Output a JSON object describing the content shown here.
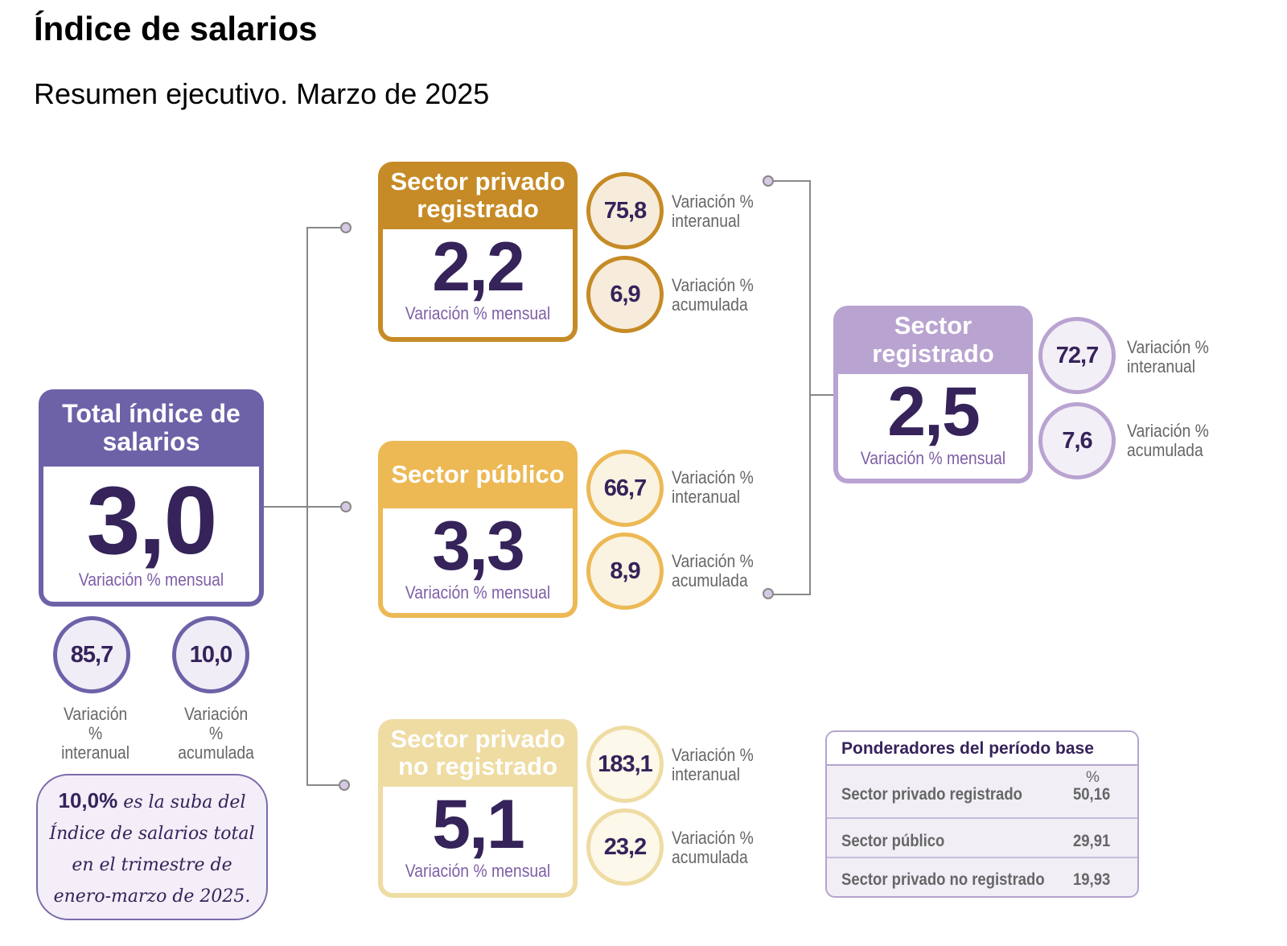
{
  "title": "Índice de salarios",
  "subtitle": "Resumen ejecutivo. Marzo de 2025",
  "colors": {
    "total": "#6d62a8",
    "privado_registrado": "#c68b26",
    "publico": "#ecb955",
    "no_registrado": "#efdca3",
    "registrado": "#b9a3d0",
    "dark": "#35235a"
  },
  "cards": [
    {
      "id": "total",
      "title": "Total índice de salarios",
      "value": "3,0",
      "label": "Variación % mensual",
      "interanual": "85,7",
      "acumulada": "10,0",
      "label_interanual": "Variación % interanual",
      "label_acumulada": "Variación % acumulada"
    },
    {
      "id": "privado-registrado",
      "title": "Sector privado registrado",
      "value": "2,2",
      "label": "Variación % mensual",
      "interanual": "75,8",
      "acumulada": "6,9",
      "label_interanual": "Variación % interanual",
      "label_acumulada": "Variación % acumulada"
    },
    {
      "id": "publico",
      "title": "Sector público",
      "value": "3,3",
      "label": "Variación % mensual",
      "interanual": "66,7",
      "acumulada": "8,9",
      "label_interanual": "Variación % interanual",
      "label_acumulada": "Variación % acumulada"
    },
    {
      "id": "no-registrado",
      "title": "Sector privado no registrado",
      "value": "5,1",
      "label": "Variación % mensual",
      "interanual": "183,1",
      "acumulada": "23,2",
      "label_interanual": "Variación % interanual",
      "label_acumulada": "Variación % acumulada"
    },
    {
      "id": "registrado",
      "title": "Sector registrado",
      "value": "2,5",
      "label": "Variación % mensual",
      "interanual": "72,7",
      "acumulada": "7,6",
      "label_interanual": "Variación % interanual",
      "label_acumulada": "Variación % acumulada"
    }
  ],
  "note": {
    "highlight": "10,0%",
    "line1": " es la suba del",
    "line2": "Índice de salarios total",
    "line3": "en el trimestre de",
    "line4": "enero-marzo de 2025."
  },
  "table": {
    "title": "Ponderadores del período base",
    "unit": "%",
    "rows": [
      {
        "name": "Sector privado registrado",
        "value": "50,16"
      },
      {
        "name": "Sector público",
        "value": "29,91"
      },
      {
        "name": "Sector privado no registrado",
        "value": "19,93"
      }
    ]
  }
}
